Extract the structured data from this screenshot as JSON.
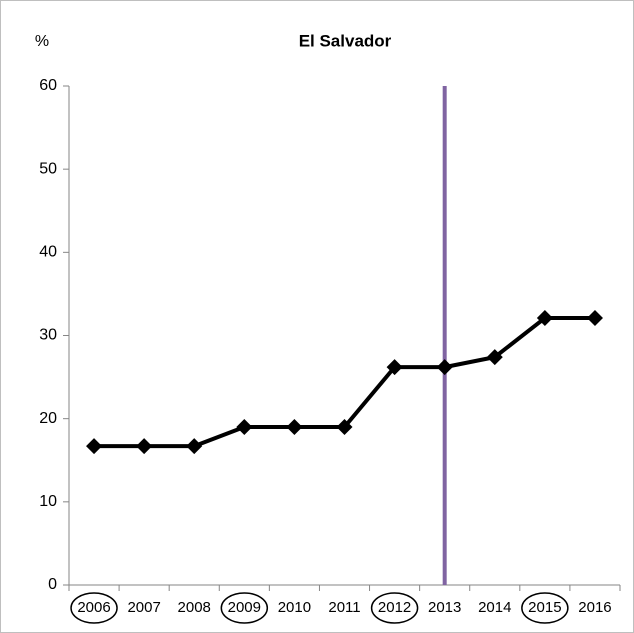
{
  "chart_data": {
    "type": "line",
    "title": "El Salvador",
    "y_label": "%",
    "categories": [
      "2006",
      "2007",
      "2008",
      "2009",
      "2010",
      "2011",
      "2012",
      "2013",
      "2014",
      "2015",
      "2016"
    ],
    "values": [
      16.7,
      16.7,
      16.7,
      19.0,
      19.0,
      19.0,
      26.2,
      26.2,
      27.4,
      32.1,
      32.1
    ],
    "color": "#000000",
    "circled": [
      true,
      false,
      false,
      true,
      false,
      false,
      true,
      false,
      false,
      true,
      false
    ],
    "marker_line": {
      "x": "2013",
      "color": "#8064a2"
    },
    "ylim": [
      0,
      60
    ],
    "yticks": [
      0,
      10,
      20,
      30,
      40,
      50,
      60
    ],
    "grid": false
  }
}
